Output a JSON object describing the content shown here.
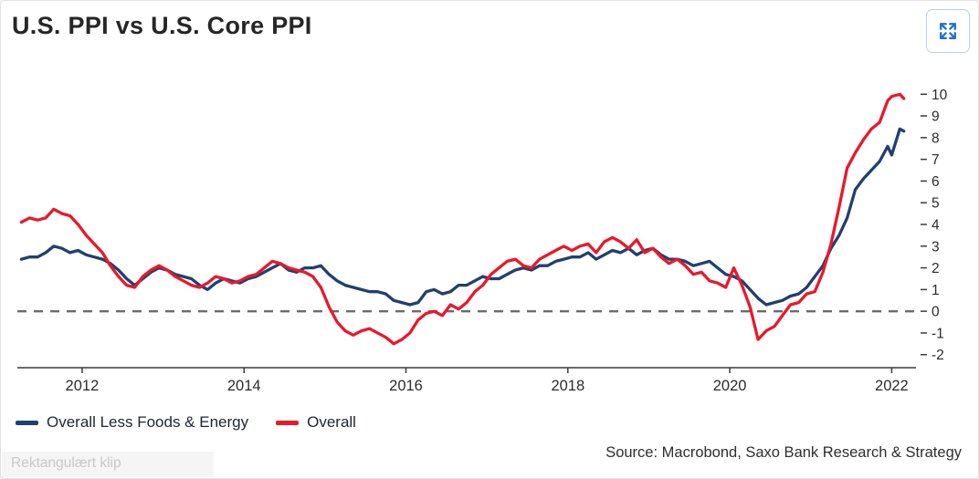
{
  "header": {
    "title": "U.S. PPI vs U.S. Core PPI"
  },
  "controls": {
    "expand_label": "Expand chart"
  },
  "legend": [
    {
      "label": "Overall Less Foods & Energy",
      "color": "#20406f"
    },
    {
      "label": "Overall",
      "color": "#e8192c"
    }
  ],
  "footer": {
    "source": "Source: Macrobond, Saxo Bank Research & Strategy"
  },
  "overlay": {
    "snip_label": "Rektangulært klip"
  },
  "colors": {
    "core_line": "#20406f",
    "overall_line": "#e8192c",
    "zero_line": "#6b6b6b",
    "axis": "#3c3c3c",
    "expand_icon": "#1e6fd9"
  },
  "chart_data": {
    "type": "line",
    "title": "U.S. PPI vs U.S. Core PPI",
    "xlabel": "",
    "ylabel": "",
    "legend_position": "bottom-left",
    "grid": false,
    "zero_line": true,
    "xlim": [
      2011.2,
      2022.3
    ],
    "ylim": [
      -2.6,
      10.6
    ],
    "x_ticks": [
      2012,
      2014,
      2016,
      2018,
      2020,
      2022
    ],
    "y_ticks": [
      -2,
      -1,
      0,
      1,
      2,
      3,
      4,
      5,
      6,
      7,
      8,
      9,
      10
    ],
    "x": [
      2011.25,
      2011.35,
      2011.45,
      2011.55,
      2011.65,
      2011.75,
      2011.85,
      2011.95,
      2012.05,
      2012.15,
      2012.25,
      2012.35,
      2012.45,
      2012.55,
      2012.65,
      2012.75,
      2012.85,
      2012.95,
      2013.05,
      2013.15,
      2013.25,
      2013.35,
      2013.45,
      2013.55,
      2013.65,
      2013.75,
      2013.85,
      2013.95,
      2014.05,
      2014.15,
      2014.25,
      2014.35,
      2014.45,
      2014.55,
      2014.65,
      2014.75,
      2014.85,
      2014.95,
      2015.05,
      2015.15,
      2015.25,
      2015.35,
      2015.45,
      2015.55,
      2015.65,
      2015.75,
      2015.85,
      2015.95,
      2016.05,
      2016.15,
      2016.25,
      2016.35,
      2016.45,
      2016.55,
      2016.65,
      2016.75,
      2016.85,
      2016.95,
      2017.05,
      2017.15,
      2017.25,
      2017.35,
      2017.45,
      2017.55,
      2017.65,
      2017.75,
      2017.85,
      2017.95,
      2018.05,
      2018.15,
      2018.25,
      2018.35,
      2018.45,
      2018.55,
      2018.65,
      2018.75,
      2018.85,
      2018.95,
      2019.05,
      2019.15,
      2019.25,
      2019.35,
      2019.45,
      2019.55,
      2019.65,
      2019.75,
      2019.85,
      2019.95,
      2020.05,
      2020.15,
      2020.25,
      2020.35,
      2020.45,
      2020.55,
      2020.65,
      2020.75,
      2020.85,
      2020.95,
      2021.05,
      2021.15,
      2021.25,
      2021.35,
      2021.45,
      2021.55,
      2021.65,
      2021.75,
      2021.85,
      2021.95,
      2022.0,
      2022.1,
      2022.15
    ],
    "series": [
      {
        "name": "Overall Less Foods & Energy",
        "color": "#20406f",
        "values": [
          2.4,
          2.5,
          2.5,
          2.7,
          3.0,
          2.9,
          2.7,
          2.8,
          2.6,
          2.5,
          2.4,
          2.2,
          1.9,
          1.5,
          1.2,
          1.5,
          1.8,
          2.0,
          1.9,
          1.7,
          1.6,
          1.5,
          1.2,
          1.0,
          1.3,
          1.5,
          1.4,
          1.3,
          1.5,
          1.6,
          1.8,
          2.0,
          2.2,
          1.9,
          1.8,
          2.0,
          2.0,
          2.1,
          1.7,
          1.4,
          1.2,
          1.1,
          1.0,
          0.9,
          0.9,
          0.8,
          0.5,
          0.4,
          0.3,
          0.4,
          0.9,
          1.0,
          0.8,
          0.9,
          1.2,
          1.2,
          1.4,
          1.6,
          1.5,
          1.5,
          1.7,
          1.9,
          2.0,
          1.9,
          2.1,
          2.1,
          2.3,
          2.4,
          2.5,
          2.5,
          2.7,
          2.4,
          2.6,
          2.8,
          2.7,
          2.9,
          2.6,
          2.8,
          2.9,
          2.6,
          2.4,
          2.4,
          2.3,
          2.1,
          2.2,
          2.3,
          2.0,
          1.7,
          1.6,
          1.4,
          1.0,
          0.6,
          0.3,
          0.4,
          0.5,
          0.7,
          0.8,
          1.1,
          1.6,
          2.1,
          2.9,
          3.5,
          4.3,
          5.6,
          6.1,
          6.5,
          6.9,
          7.6,
          7.2,
          8.4,
          8.3
        ]
      },
      {
        "name": "Overall",
        "color": "#e8192c",
        "values": [
          4.1,
          4.3,
          4.2,
          4.3,
          4.7,
          4.5,
          4.4,
          4.0,
          3.5,
          3.1,
          2.7,
          2.1,
          1.6,
          1.2,
          1.1,
          1.6,
          1.9,
          2.1,
          1.9,
          1.6,
          1.4,
          1.2,
          1.1,
          1.3,
          1.6,
          1.5,
          1.3,
          1.4,
          1.6,
          1.7,
          2.0,
          2.3,
          2.2,
          2.0,
          1.9,
          1.8,
          1.6,
          1.1,
          0.2,
          -0.5,
          -0.9,
          -1.1,
          -0.9,
          -0.8,
          -1.0,
          -1.2,
          -1.5,
          -1.3,
          -1.0,
          -0.4,
          -0.1,
          0.0,
          -0.2,
          0.3,
          0.1,
          0.4,
          0.9,
          1.2,
          1.7,
          2.0,
          2.3,
          2.4,
          2.1,
          2.0,
          2.4,
          2.6,
          2.8,
          3.0,
          2.8,
          3.0,
          3.1,
          2.7,
          3.2,
          3.4,
          3.2,
          2.9,
          3.3,
          2.7,
          2.9,
          2.5,
          2.2,
          2.4,
          2.1,
          1.7,
          1.8,
          1.4,
          1.3,
          1.1,
          2.0,
          1.2,
          0.2,
          -1.3,
          -0.9,
          -0.7,
          -0.2,
          0.3,
          0.4,
          0.8,
          0.9,
          1.8,
          3.1,
          4.8,
          6.6,
          7.3,
          7.9,
          8.4,
          8.7,
          9.7,
          9.9,
          10.0,
          9.8
        ]
      }
    ]
  }
}
